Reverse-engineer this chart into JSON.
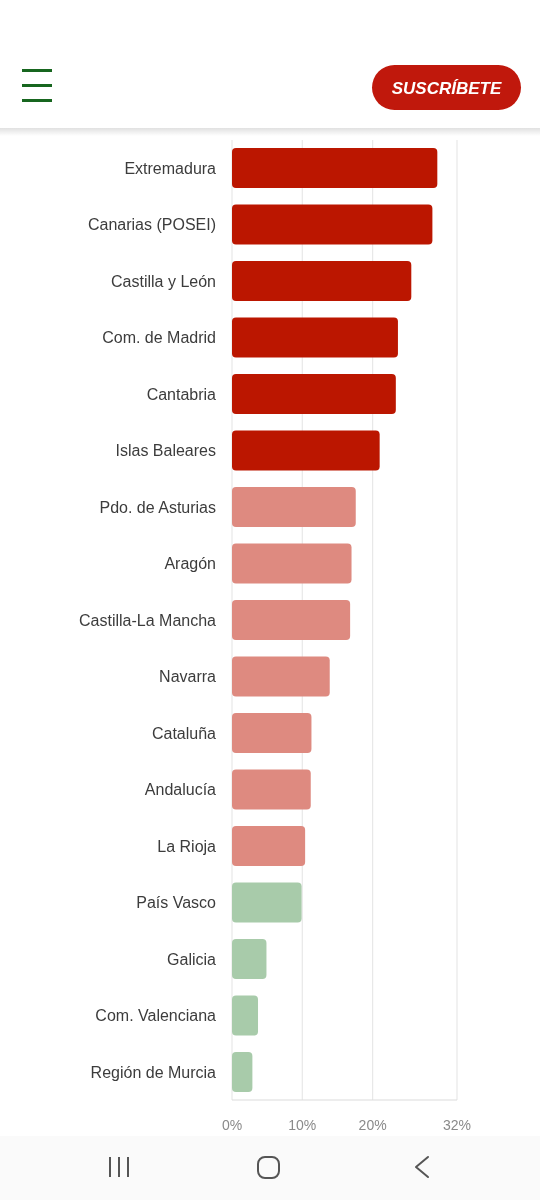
{
  "chart_data": {
    "type": "bar",
    "orientation": "horizontal",
    "categories": [
      "Extremadura",
      "Canarias (POSEI)",
      "Castilla y León",
      "Com. de Madrid",
      "Cantabria",
      "Islas Baleares",
      "Pdo. de Asturias",
      "Aragón",
      "Castilla-La Mancha",
      "Navarra",
      "Cataluña",
      "Andalucía",
      "La Rioja",
      "País Vasco",
      "Galicia",
      "Com. Valenciana",
      "Región de Murcia"
    ],
    "values": [
      29.2,
      28.5,
      25.5,
      23.6,
      23.3,
      21.0,
      17.6,
      17.0,
      16.8,
      13.9,
      11.3,
      11.2,
      10.4,
      9.9,
      4.9,
      3.7,
      2.9
    ],
    "colors": [
      "#bb1600",
      "#bb1600",
      "#bb1600",
      "#bb1600",
      "#bb1600",
      "#bb1600",
      "#de8a80",
      "#de8a80",
      "#de8a80",
      "#de8a80",
      "#de8a80",
      "#de8a80",
      "#de8a80",
      "#a8cbaa",
      "#a8cbaa",
      "#a8cbaa",
      "#a8cbaa"
    ],
    "xlim": [
      0,
      32
    ],
    "xticks": [
      {
        "value": 0,
        "label": "0%"
      },
      {
        "value": 10,
        "label": "10%"
      },
      {
        "value": 20,
        "label": "20%"
      },
      {
        "value": 32,
        "label": "32%"
      }
    ],
    "grid": "x",
    "annotations": [
      "SUSCRÍBETE"
    ]
  }
}
